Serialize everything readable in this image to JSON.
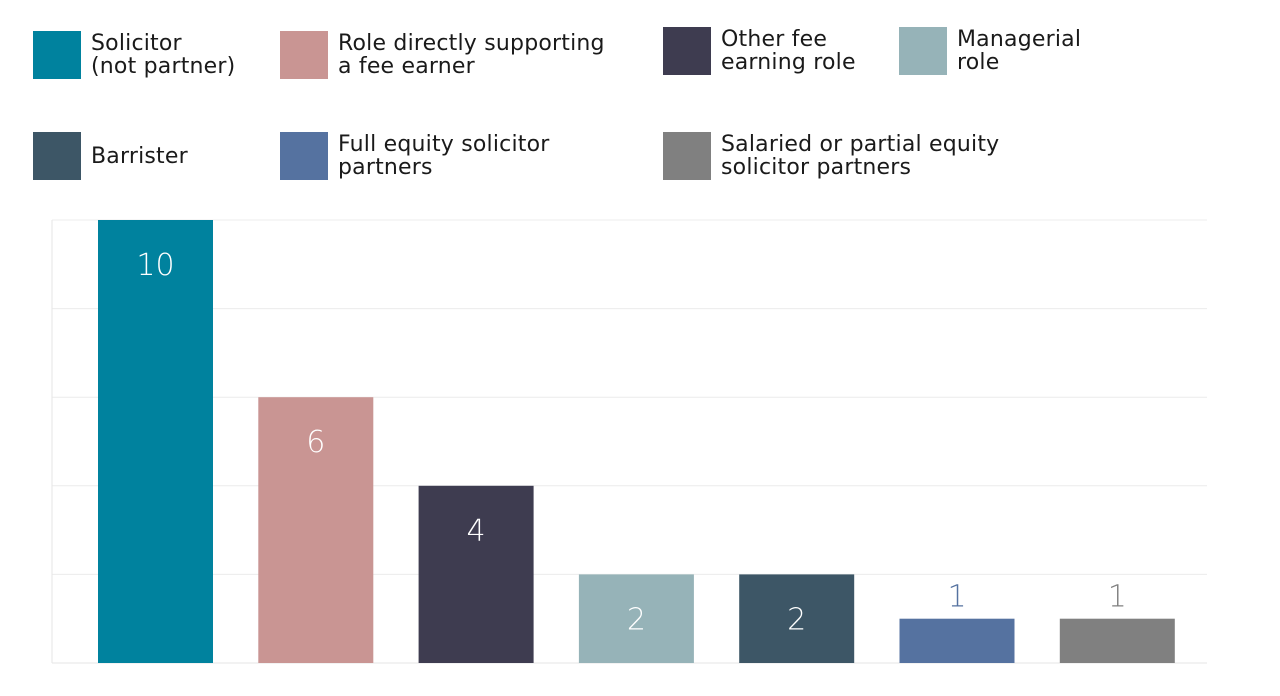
{
  "chart_data": {
    "type": "bar",
    "categories": [
      "Solicitor\n(not partner)",
      "Role directly supporting\na fee earner",
      "Other fee\nearning role",
      "Managerial\nrole",
      "Barrister",
      "Full equity solicitor\npartners",
      "Salaried or partial equity\nsolicitor partners"
    ],
    "values": [
      10,
      6,
      4,
      2,
      2,
      1,
      1
    ],
    "colors": [
      "#00829e",
      "#c99593",
      "#3e3c50",
      "#96b3b8",
      "#3d5666",
      "#5572a0",
      "#808080"
    ],
    "ylim": [
      0,
      10
    ],
    "grid": true,
    "legend_position": "top"
  }
}
